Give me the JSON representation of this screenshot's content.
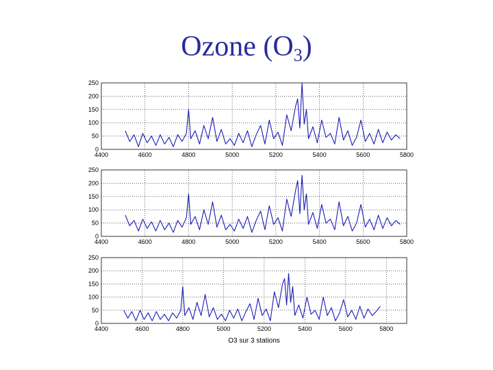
{
  "slide": {
    "title_text": "Ozone (O",
    "title_sub": "3",
    "title_close": ")"
  },
  "colors": {
    "series": "#1a1ab4",
    "grid": "#000000"
  },
  "caption": "O3 sur 3 stations",
  "chart_data": [
    {
      "type": "line",
      "title": "",
      "xlabel": "",
      "ylabel": "",
      "xlim": [
        4400,
        5800
      ],
      "ylim": [
        0,
        250
      ],
      "xticks": [
        4400,
        4600,
        4800,
        5000,
        5200,
        5400,
        5600,
        5800
      ],
      "yticks": [
        0,
        50,
        100,
        150,
        200,
        250
      ],
      "grid": true,
      "series": [
        {
          "name": "",
          "x": [
            4510,
            4530,
            4550,
            4570,
            4590,
            4610,
            4630,
            4650,
            4670,
            4690,
            4710,
            4730,
            4750,
            4770,
            4790,
            4800,
            4810,
            4830,
            4850,
            4870,
            4890,
            4910,
            4930,
            4950,
            4970,
            4990,
            5010,
            5030,
            5050,
            5070,
            5090,
            5110,
            5130,
            5150,
            5170,
            5190,
            5210,
            5230,
            5250,
            5270,
            5290,
            5300,
            5310,
            5320,
            5330,
            5340,
            5350,
            5370,
            5390,
            5410,
            5430,
            5450,
            5470,
            5490,
            5510,
            5530,
            5550,
            5570,
            5590,
            5610,
            5630,
            5650,
            5670,
            5690,
            5710,
            5730,
            5750,
            5770
          ],
          "values": [
            70,
            30,
            55,
            10,
            60,
            25,
            50,
            15,
            55,
            20,
            45,
            10,
            55,
            30,
            60,
            150,
            40,
            70,
            20,
            90,
            40,
            120,
            30,
            75,
            20,
            40,
            15,
            60,
            25,
            70,
            10,
            55,
            90,
            20,
            110,
            40,
            65,
            15,
            130,
            70,
            160,
            190,
            80,
            250,
            95,
            150,
            40,
            85,
            25,
            110,
            45,
            60,
            20,
            120,
            35,
            70,
            15,
            45,
            110,
            30,
            60,
            20,
            75,
            25,
            65,
            35,
            55,
            40
          ]
        }
      ]
    },
    {
      "type": "line",
      "title": "",
      "xlabel": "",
      "ylabel": "",
      "xlim": [
        4400,
        5800
      ],
      "ylim": [
        0,
        250
      ],
      "xticks": [
        4400,
        4600,
        4800,
        5000,
        5200,
        5400,
        5600,
        5800
      ],
      "yticks": [
        0,
        50,
        100,
        150,
        200,
        250
      ],
      "grid": true,
      "series": [
        {
          "name": "",
          "x": [
            4510,
            4530,
            4550,
            4570,
            4590,
            4610,
            4630,
            4650,
            4670,
            4690,
            4710,
            4730,
            4750,
            4770,
            4790,
            4800,
            4810,
            4830,
            4850,
            4870,
            4890,
            4910,
            4930,
            4950,
            4970,
            4990,
            5010,
            5030,
            5050,
            5070,
            5090,
            5110,
            5130,
            5150,
            5170,
            5190,
            5210,
            5230,
            5250,
            5270,
            5290,
            5300,
            5310,
            5320,
            5330,
            5340,
            5350,
            5370,
            5390,
            5410,
            5430,
            5450,
            5470,
            5490,
            5510,
            5530,
            5550,
            5570,
            5590,
            5610,
            5630,
            5650,
            5670,
            5690,
            5710,
            5730,
            5750,
            5770
          ],
          "values": [
            80,
            40,
            60,
            20,
            65,
            30,
            55,
            20,
            60,
            25,
            50,
            15,
            60,
            35,
            70,
            160,
            45,
            75,
            25,
            100,
            45,
            130,
            35,
            80,
            25,
            45,
            20,
            65,
            30,
            75,
            15,
            60,
            95,
            25,
            115,
            45,
            70,
            20,
            140,
            75,
            170,
            210,
            85,
            230,
            100,
            160,
            45,
            90,
            30,
            120,
            50,
            65,
            25,
            130,
            40,
            75,
            20,
            50,
            120,
            35,
            65,
            25,
            80,
            30,
            70,
            40,
            60,
            45
          ]
        }
      ]
    },
    {
      "type": "line",
      "title": "",
      "xlabel": "",
      "ylabel": "",
      "xlim": [
        4400,
        5900
      ],
      "ylim": [
        0,
        250
      ],
      "xticks": [
        4400,
        4600,
        4800,
        5000,
        5200,
        5400,
        5600,
        5800
      ],
      "yticks": [
        0,
        50,
        100,
        150,
        200,
        250
      ],
      "grid": true,
      "series": [
        {
          "name": "",
          "x": [
            4510,
            4530,
            4550,
            4570,
            4590,
            4610,
            4630,
            4650,
            4670,
            4690,
            4710,
            4730,
            4750,
            4770,
            4790,
            4800,
            4810,
            4830,
            4850,
            4870,
            4890,
            4910,
            4930,
            4950,
            4970,
            4990,
            5010,
            5030,
            5050,
            5070,
            5090,
            5110,
            5130,
            5150,
            5170,
            5190,
            5210,
            5230,
            5250,
            5270,
            5290,
            5300,
            5310,
            5320,
            5330,
            5340,
            5350,
            5370,
            5390,
            5410,
            5430,
            5450,
            5470,
            5490,
            5510,
            5530,
            5550,
            5570,
            5590,
            5610,
            5630,
            5650,
            5670,
            5690,
            5710,
            5730,
            5750,
            5770
          ],
          "values": [
            50,
            20,
            45,
            10,
            50,
            15,
            40,
            10,
            45,
            15,
            35,
            10,
            40,
            20,
            50,
            140,
            30,
            60,
            15,
            80,
            30,
            110,
            25,
            60,
            15,
            35,
            10,
            50,
            20,
            55,
            10,
            45,
            75,
            15,
            95,
            30,
            55,
            10,
            120,
            60,
            150,
            170,
            70,
            190,
            80,
            140,
            30,
            70,
            20,
            100,
            35,
            50,
            15,
            100,
            30,
            60,
            10,
            40,
            90,
            25,
            50,
            15,
            65,
            20,
            55,
            30,
            45,
            65
          ]
        }
      ]
    }
  ]
}
